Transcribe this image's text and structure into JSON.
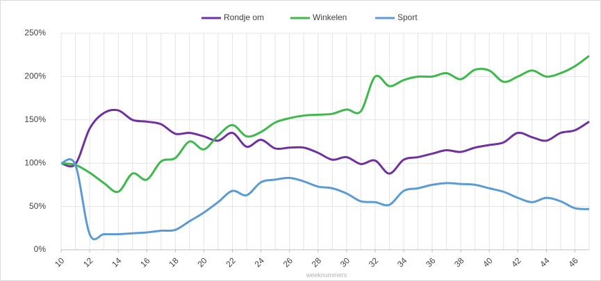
{
  "chart_data": {
    "type": "line",
    "x_label": "weeknummers",
    "x": [
      10,
      11,
      12,
      13,
      14,
      15,
      16,
      17,
      18,
      19,
      20,
      21,
      22,
      23,
      24,
      25,
      26,
      27,
      28,
      29,
      30,
      31,
      32,
      33,
      34,
      35,
      36,
      37,
      38,
      39,
      40,
      41,
      42,
      43,
      44,
      45,
      46,
      47
    ],
    "xlim": [
      10,
      47
    ],
    "xticks": [
      10,
      12,
      14,
      16,
      18,
      20,
      22,
      24,
      26,
      28,
      30,
      32,
      34,
      36,
      38,
      40,
      42,
      44,
      46
    ],
    "ylim": [
      0,
      250
    ],
    "yticks": [
      {
        "value": 0,
        "label": "0%"
      },
      {
        "value": 50,
        "label": "50%"
      },
      {
        "value": 100,
        "label": "100%"
      },
      {
        "value": 150,
        "label": "150%"
      },
      {
        "value": 200,
        "label": "200%"
      },
      {
        "value": 250,
        "label": "250%"
      }
    ],
    "grid": true,
    "legend": "top",
    "series": [
      {
        "name": "Rondje om",
        "color": "#7030a0",
        "values": [
          100,
          99,
          140,
          158,
          161,
          150,
          148,
          145,
          134,
          135,
          131,
          126,
          135,
          119,
          127,
          117,
          118,
          118,
          112,
          104,
          107,
          99,
          103,
          88,
          104,
          107,
          111,
          115,
          113,
          118,
          121,
          124,
          135,
          130,
          126,
          135,
          138,
          148
        ]
      },
      {
        "name": "Winkelen",
        "color": "#3cb94a",
        "values": [
          100,
          98,
          89,
          77,
          67,
          88,
          81,
          102,
          106,
          125,
          116,
          132,
          144,
          131,
          136,
          147,
          152,
          155,
          156,
          157,
          162,
          160,
          200,
          189,
          196,
          200,
          200,
          204,
          197,
          208,
          207,
          194,
          200,
          207,
          200,
          204,
          212,
          224
        ]
      },
      {
        "name": "Sport",
        "color": "#5b9bd5",
        "values": [
          100,
          98,
          18,
          18,
          18,
          19,
          20,
          22,
          23,
          33,
          43,
          55,
          68,
          63,
          78,
          81,
          83,
          79,
          73,
          71,
          65,
          56,
          55,
          52,
          68,
          71,
          75,
          77,
          76,
          75,
          71,
          67,
          60,
          55,
          60,
          56,
          48,
          47
        ]
      }
    ]
  }
}
